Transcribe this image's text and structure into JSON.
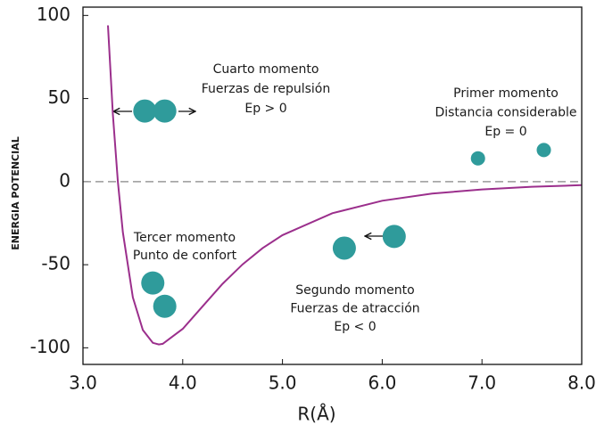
{
  "chart_data": {
    "type": "line",
    "xlabel": "R(Å)",
    "ylabel": "ENERGIA POTENCIAL",
    "xlim": [
      3,
      8
    ],
    "ylim": [
      -110,
      105
    ],
    "xticks": [
      {
        "value": 3,
        "label": "3.0"
      },
      {
        "value": 4,
        "label": "4.0"
      },
      {
        "value": 5,
        "label": "5.0"
      },
      {
        "value": 6,
        "label": "6.0"
      },
      {
        "value": 7,
        "label": "7.0"
      },
      {
        "value": 8,
        "label": "8.0"
      }
    ],
    "yticks": [
      -100,
      -50,
      0,
      50,
      100
    ],
    "reference_line": 0,
    "series": [
      {
        "color": "#9b2f8c",
        "x": [
          3.25,
          3.3,
          3.35,
          3.4,
          3.5,
          3.6,
          3.7,
          3.76,
          3.8,
          4.0,
          4.2,
          4.4,
          4.6,
          4.8,
          5.0,
          5.5,
          6.0,
          6.5,
          7.0,
          7.5,
          8.0
        ],
        "values": [
          94,
          40.5,
          0,
          -30.5,
          -69.7,
          -89.3,
          -97,
          -98,
          -97.6,
          -88.6,
          -75,
          -61.5,
          -49.8,
          -40.1,
          -32.2,
          -19,
          -11.5,
          -7.2,
          -4.7,
          -3.1,
          -2.1
        ]
      }
    ],
    "atoms": {
      "type": "scatter",
      "color": "#2f9b9b",
      "x": [
        6.96,
        7.62,
        5.62,
        6.12,
        3.7,
        3.82,
        3.62,
        3.82
      ],
      "values": [
        14,
        19,
        -40,
        -33,
        -61,
        -75,
        42.5,
        42.5
      ]
    },
    "annotations": [
      [
        "Primer  momento",
        "Distancia considerable",
        "Ep = 0"
      ],
      [
        "Segundo momento",
        "Fuerzas de atracción",
        "Ep < 0"
      ],
      [
        "Tercer  momento",
        "Punto de confort"
      ],
      [
        "Cuarto momento",
        "Fuerzas de repulsión",
        "Ep > 0"
      ]
    ]
  }
}
